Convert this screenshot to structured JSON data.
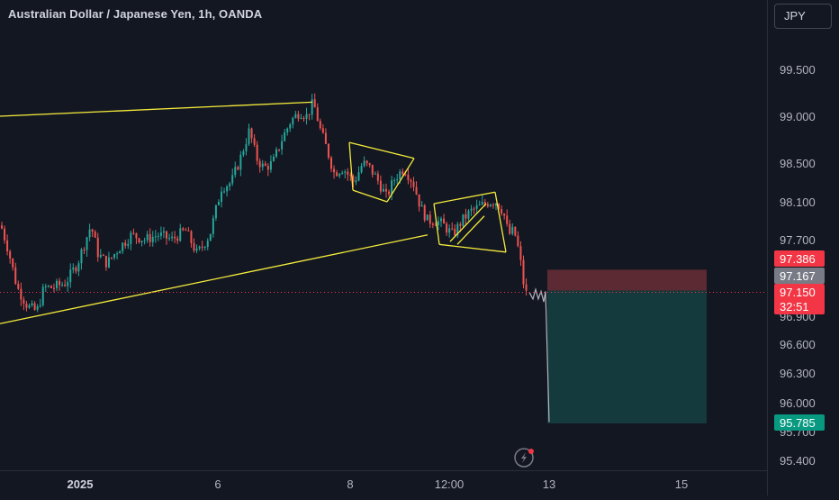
{
  "header": {
    "title": "Australian Dollar / Japanese Yen, 1h, OANDA",
    "currency": "JPY"
  },
  "chart_data": {
    "type": "candlestick",
    "title": "Australian Dollar / Japanese Yen, 1h, OANDA",
    "symbol": "AUDJPY",
    "exchange": "OANDA",
    "interval": "1h",
    "currency": "JPY",
    "y_ticks": [
      "99.500",
      "99.000",
      "98.500",
      "98.100",
      "97.700",
      "96.900",
      "96.600",
      "96.300",
      "96.000",
      "95.700",
      "95.400"
    ],
    "y_tick_values": [
      99.5,
      99.0,
      98.5,
      98.1,
      97.7,
      96.9,
      96.6,
      96.3,
      96.0,
      95.7,
      95.4
    ],
    "x_ticks": [
      "2025",
      "6",
      "8",
      "12:00",
      "13",
      "15"
    ],
    "close_path": [
      [
        0,
        97.85
      ],
      [
        8,
        97.6
      ],
      [
        18,
        97.2
      ],
      [
        30,
        97.0
      ],
      [
        40,
        96.95
      ],
      [
        48,
        97.2
      ],
      [
        58,
        97.2
      ],
      [
        72,
        97.25
      ],
      [
        85,
        97.45
      ],
      [
        100,
        97.85
      ],
      [
        108,
        97.55
      ],
      [
        118,
        97.45
      ],
      [
        130,
        97.6
      ],
      [
        145,
        97.75
      ],
      [
        160,
        97.7
      ],
      [
        175,
        97.75
      ],
      [
        190,
        97.7
      ],
      [
        205,
        97.8
      ],
      [
        218,
        97.55
      ],
      [
        232,
        97.75
      ],
      [
        245,
        98.25
      ],
      [
        256,
        98.3
      ],
      [
        266,
        98.55
      ],
      [
        276,
        98.85
      ],
      [
        284,
        98.55
      ],
      [
        292,
        98.45
      ],
      [
        302,
        98.5
      ],
      [
        312,
        98.75
      ],
      [
        322,
        98.95
      ],
      [
        332,
        99.05
      ],
      [
        340,
        99.0
      ],
      [
        347,
        99.15
      ],
      [
        355,
        98.85
      ],
      [
        362,
        98.65
      ],
      [
        370,
        98.4
      ],
      [
        380,
        98.45
      ],
      [
        392,
        98.3
      ],
      [
        402,
        98.5
      ],
      [
        410,
        98.45
      ],
      [
        420,
        98.3
      ],
      [
        428,
        98.15
      ],
      [
        438,
        98.35
      ],
      [
        448,
        98.45
      ],
      [
        458,
        98.3
      ],
      [
        466,
        98.05
      ],
      [
        474,
        97.9
      ],
      [
        484,
        97.9
      ],
      [
        492,
        97.85
      ],
      [
        502,
        97.75
      ],
      [
        512,
        97.9
      ],
      [
        522,
        98.0
      ],
      [
        532,
        98.05
      ],
      [
        542,
        98.1
      ],
      [
        550,
        98.1
      ],
      [
        558,
        98.0
      ],
      [
        564,
        97.75
      ],
      [
        570,
        97.8
      ],
      [
        576,
        97.55
      ],
      [
        582,
        97.15
      ],
      [
        588,
        97.1
      ]
    ],
    "projection_path": [
      [
        588,
        97.15
      ],
      [
        592,
        97.08
      ],
      [
        595,
        97.18
      ],
      [
        598,
        97.08
      ],
      [
        601,
        97.16
      ],
      [
        604,
        97.05
      ],
      [
        606,
        97.16
      ],
      [
        610,
        95.8
      ]
    ],
    "trendlines": [
      {
        "from": [
          0,
          99.0
        ],
        "to": [
          347,
          99.15
        ]
      },
      {
        "from": [
          0,
          96.82
        ],
        "to": [
          475,
          97.75
        ]
      },
      {
        "from": [
          388,
          98.72
        ],
        "to": [
          460,
          98.55
        ]
      },
      {
        "from": [
          392,
          98.22
        ],
        "to": [
          430,
          98.1
        ]
      },
      {
        "from": [
          388,
          98.72
        ],
        "to": [
          392,
          98.22
        ]
      },
      {
        "from": [
          460,
          98.55
        ],
        "to": [
          430,
          98.1
        ]
      },
      {
        "from": [
          482,
          98.08
        ],
        "to": [
          550,
          98.2
        ]
      },
      {
        "from": [
          488,
          97.65
        ],
        "to": [
          562,
          97.57
        ]
      },
      {
        "from": [
          482,
          98.08
        ],
        "to": [
          488,
          97.65
        ]
      },
      {
        "from": [
          550,
          98.2
        ],
        "to": [
          562,
          97.57
        ]
      },
      {
        "from": [
          500,
          97.68
        ],
        "to": [
          540,
          98.08
        ]
      },
      {
        "from": [
          508,
          97.65
        ],
        "to": [
          538,
          97.95
        ]
      }
    ],
    "position": {
      "type": "short",
      "entry": 97.167,
      "stop": 97.386,
      "target": 95.785,
      "x_from": 608,
      "x_to": 785
    },
    "last_price": 97.15,
    "countdown": "32:51",
    "colors": {
      "up": "#26a69a",
      "down": "#ef5350",
      "background": "#131722",
      "trendline": "#f5eb3b",
      "stop_zone": "#5b2a32",
      "target_zone": "#153a3e",
      "projection": "#b2b5be"
    }
  },
  "price_tags": {
    "stop": {
      "text": "97.386",
      "bg": "#f23645",
      "fg": "#ffffff"
    },
    "entry": {
      "text": "97.167",
      "bg": "#787b86",
      "fg": "#ffffff"
    },
    "last": {
      "text": "97.150",
      "bg": "#f23645",
      "fg": "#ffffff"
    },
    "countdown": {
      "text": "32:51",
      "bg": "#f23645",
      "fg": "#ffffff"
    },
    "target": {
      "text": "95.785",
      "bg": "#089981",
      "fg": "#ffffff"
    }
  },
  "icons": {
    "replay": "lightning-icon"
  }
}
